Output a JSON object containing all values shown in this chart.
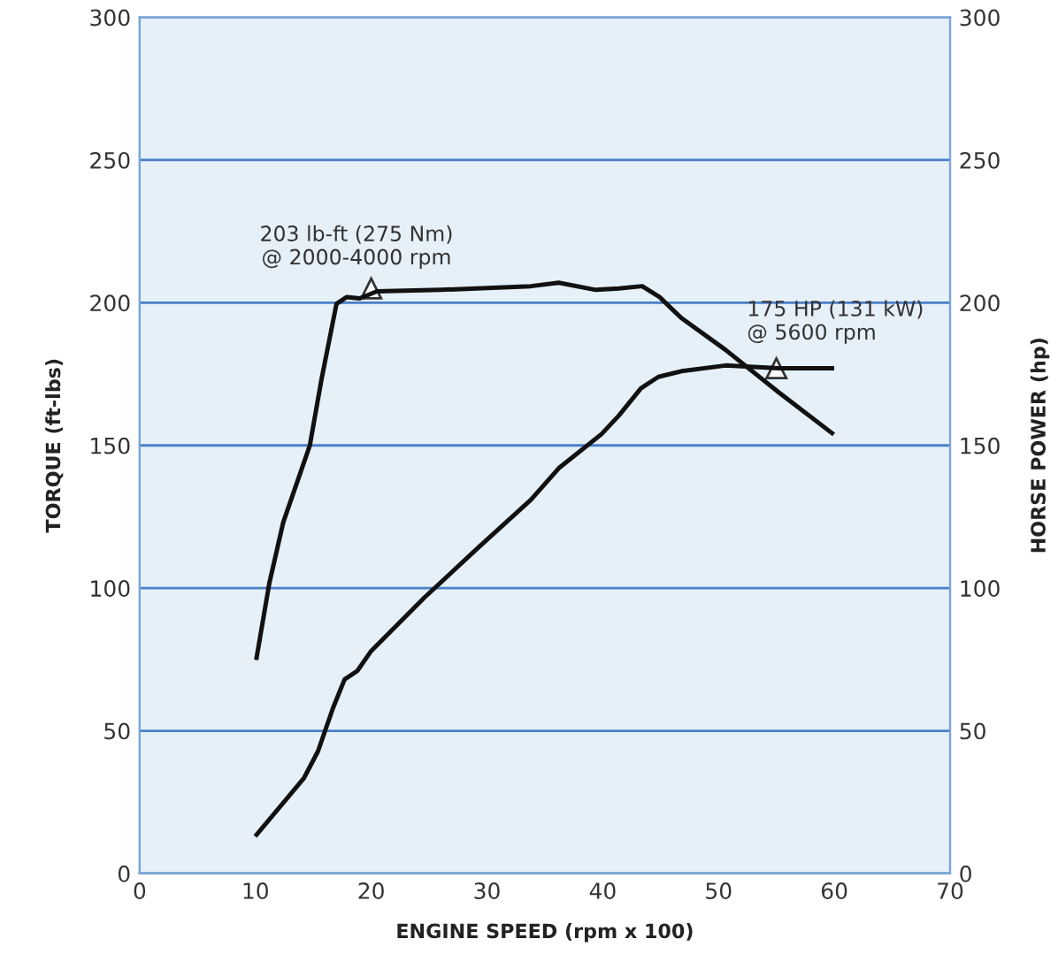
{
  "chart_data": {
    "type": "line",
    "xlabel": "ENGINE SPEED (rpm x 100)",
    "ylabel": "TORQUE (ft-lbs)",
    "y2label": "HORSE POWER (hp)",
    "xlim": [
      0,
      70
    ],
    "xticks": [
      0,
      10,
      20,
      30,
      40,
      50,
      60,
      70
    ],
    "ylim": [
      0,
      300
    ],
    "yticks": [
      0,
      50,
      100,
      150,
      200,
      250,
      300
    ],
    "y2lim": [
      0,
      300
    ],
    "y2ticks": [
      0,
      50,
      100,
      150,
      200,
      250,
      300
    ],
    "grid": "y",
    "legend": false,
    "marker": "none",
    "line_style": "solid",
    "series": [
      {
        "color": "#111111",
        "x": [
          10.1,
          11.2,
          12.4,
          14.7,
          15.7,
          17,
          17.9,
          19,
          20.5,
          26,
          33.8,
          36.2,
          39.4,
          41.4,
          43.4,
          44.9,
          46.8,
          50.6,
          55.2,
          59.8
        ],
        "values": [
          75.6,
          101.7,
          123,
          150,
          173,
          199.6,
          202,
          201.5,
          204,
          204.5,
          205.8,
          207,
          204.5,
          205,
          205.8,
          202,
          194.6,
          183.5,
          168.6,
          154.3
        ]
      },
      {
        "color": "#111111",
        "axis": "y2",
        "x": [
          10.1,
          14.2,
          15.4,
          16.7,
          17.7,
          18.8,
          20,
          24.6,
          29.2,
          33.8,
          36.2,
          39.9,
          41.4,
          43.3,
          44.8,
          46.8,
          50.6,
          55.2,
          59.8
        ],
        "values": [
          13.6,
          33.5,
          42.8,
          58,
          68,
          71,
          78,
          96.7,
          114,
          131,
          142,
          154,
          160.5,
          170,
          174,
          176,
          178,
          177,
          177
        ]
      }
    ],
    "annotations": [
      {
        "text": "203 lb-ft (275 Nm)\n@ 2000-4000 rpm",
        "x": 20,
        "y": 205
      },
      {
        "text": "175 HP (131 kW)\n@ 5600 rpm",
        "x": 55,
        "y": 177
      }
    ]
  }
}
